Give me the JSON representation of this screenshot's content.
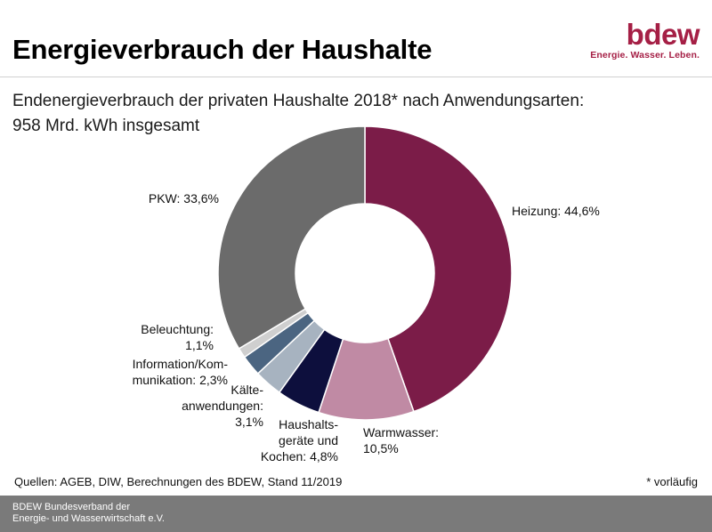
{
  "header": {
    "title": "Energieverbrauch der Haushalte",
    "logo_word": "bdew",
    "logo_tagline": "Energie. Wasser. Leben."
  },
  "subtitle": {
    "line1": "Endenergieverbrauch der privaten Haushalte 2018* nach Anwendungsarten:",
    "line2": "958 Mrd. kWh insgesamt"
  },
  "chart_data": {
    "type": "pie",
    "donut": true,
    "title": "Endenergieverbrauch der privaten Haushalte 2018* nach Anwendungsarten",
    "total": "958 Mrd. kWh",
    "unit": "%",
    "slices": [
      {
        "key": "heizung",
        "name": "Heizung",
        "value": 44.6,
        "color": "#7b1c48",
        "label_lines": [
          "Heizung: 44,6%"
        ]
      },
      {
        "key": "warmwasser",
        "name": "Warmwasser",
        "value": 10.5,
        "color": "#c08aa4",
        "label_lines": [
          "Warmwasser:",
          "10,5%"
        ]
      },
      {
        "key": "haushaltsgeraete",
        "name": "Haushaltsgeräte und Kochen",
        "value": 4.8,
        "color": "#0d0f3d",
        "label_lines": [
          "Haushalts-",
          "geräte und",
          "Kochen: 4,8%"
        ]
      },
      {
        "key": "kaelte",
        "name": "Kälteanwendungen",
        "value": 3.1,
        "color": "#a7b3c0",
        "label_lines": [
          "Kälte-",
          "anwendungen:",
          "3,1%"
        ]
      },
      {
        "key": "ikt",
        "name": "Information/Kommunikation",
        "value": 2.3,
        "color": "#4b6581",
        "label_lines": [
          "Information/Kom-",
          "munikation: 2,3%"
        ]
      },
      {
        "key": "beleuchtung",
        "name": "Beleuchtung",
        "value": 1.1,
        "color": "#cfcfcf",
        "label_lines": [
          "Beleuchtung:",
          "1,1%"
        ]
      },
      {
        "key": "pkw",
        "name": "PKW",
        "value": 33.6,
        "color": "#6b6b6b",
        "label_lines": [
          "PKW: 33,6%"
        ]
      }
    ]
  },
  "sources": "Quellen: AGEB, DIW, Berechnungen des BDEW, Stand 11/2019",
  "footnote": "* vorläufig",
  "footer": {
    "line1": "BDEW Bundesverband der",
    "line2": "Energie- und Wasserwirtschaft e.V."
  }
}
